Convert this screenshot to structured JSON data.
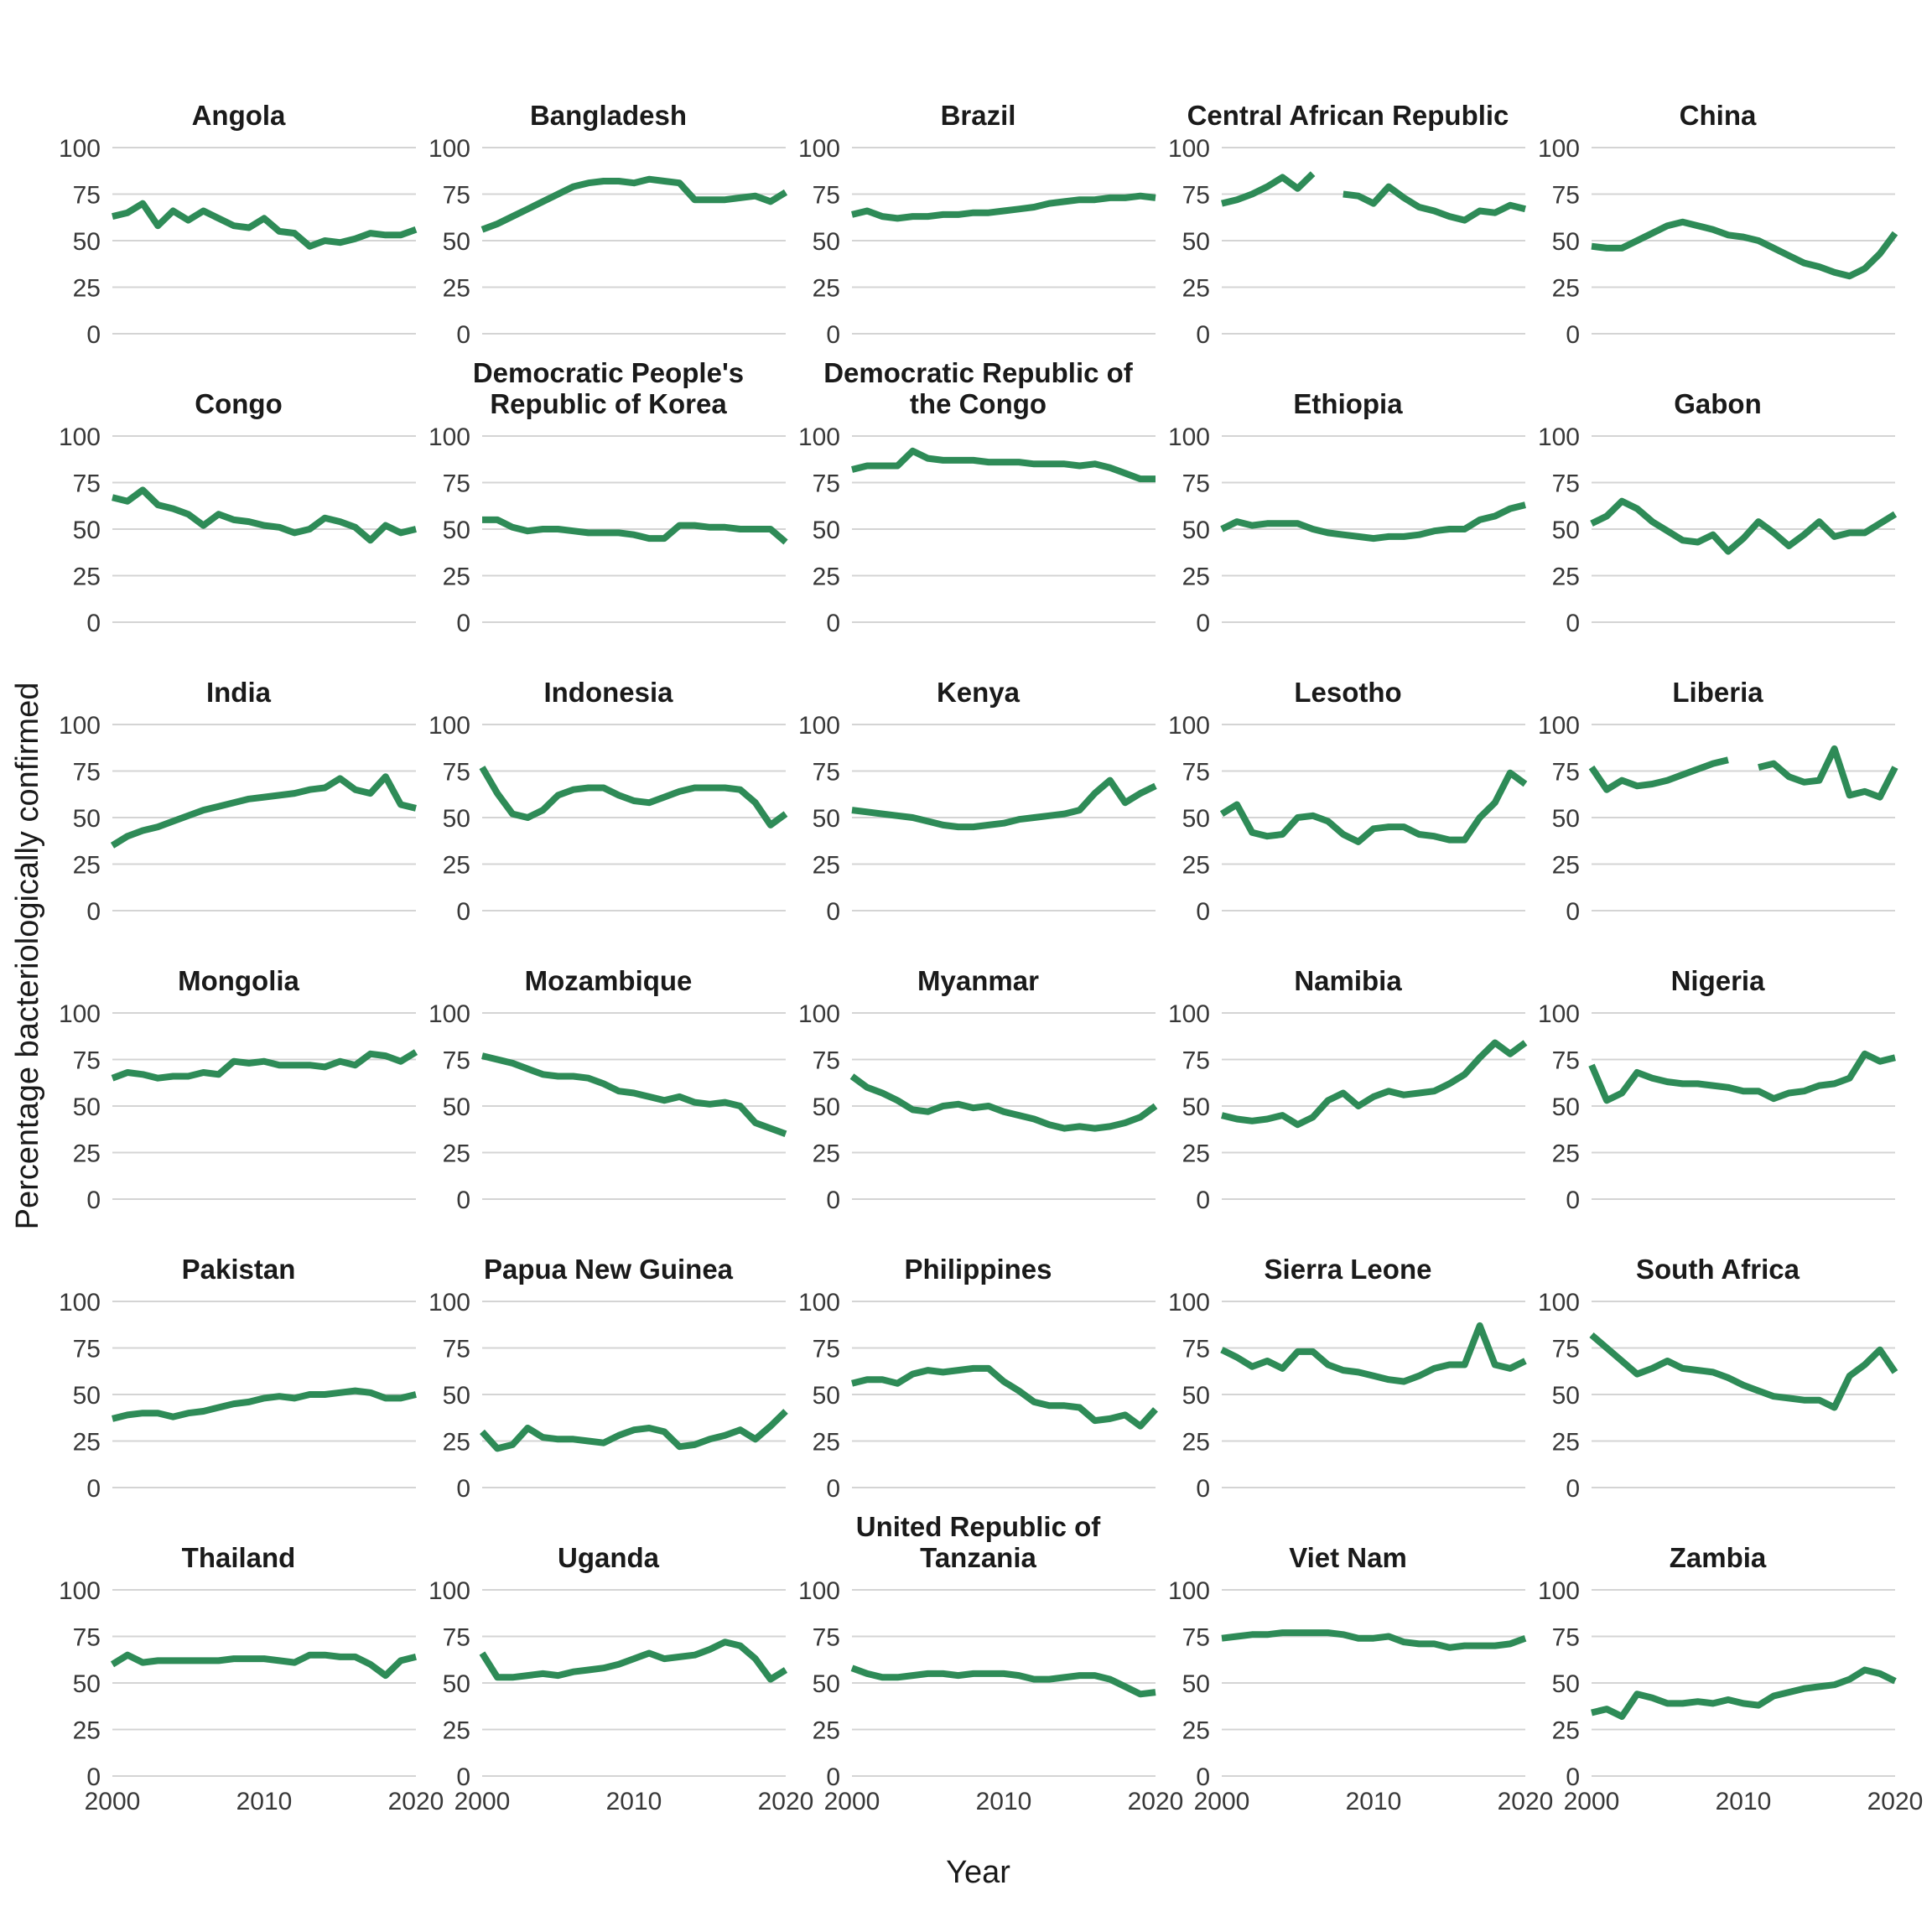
{
  "figure": {
    "y_axis_title": "Percentage bacteriologically confirmed",
    "x_axis_title": "Year",
    "colors": {
      "line": "#2e8b57",
      "grid": "#d4d4d4",
      "title_text": "#1a1a1a",
      "tick_text": "#383838"
    }
  },
  "chart_data": {
    "type": "line",
    "x": [
      2000,
      2001,
      2002,
      2003,
      2004,
      2005,
      2006,
      2007,
      2008,
      2009,
      2010,
      2011,
      2012,
      2013,
      2014,
      2015,
      2016,
      2017,
      2018,
      2019,
      2020
    ],
    "x_ticks": [
      2000,
      2010,
      2020
    ],
    "y_ticks": [
      100,
      75,
      50,
      25,
      0
    ],
    "ylim": [
      0,
      100
    ],
    "grid": "horizontal-only",
    "facets_per_row": 5,
    "legend": "none",
    "series": [
      {
        "name": "Angola",
        "values": [
          63,
          65,
          70,
          58,
          66,
          61,
          66,
          62,
          58,
          57,
          62,
          55,
          54,
          47,
          50,
          49,
          51,
          54,
          53,
          53,
          56
        ]
      },
      {
        "name": "Bangladesh",
        "values": [
          56,
          59,
          63,
          67,
          71,
          75,
          79,
          81,
          82,
          82,
          81,
          83,
          82,
          81,
          72,
          72,
          72,
          73,
          74,
          71,
          76
        ]
      },
      {
        "name": "Brazil",
        "values": [
          64,
          66,
          63,
          62,
          63,
          63,
          64,
          64,
          65,
          65,
          66,
          67,
          68,
          70,
          71,
          72,
          72,
          73,
          73,
          74,
          73
        ]
      },
      {
        "name": "Central African\nRepublic",
        "values": [
          70,
          72,
          75,
          79,
          84,
          78,
          86,
          null,
          75,
          74,
          70,
          79,
          73,
          68,
          66,
          63,
          61,
          66,
          65,
          69,
          67
        ]
      },
      {
        "name": "China",
        "values": [
          47,
          46,
          46,
          50,
          54,
          58,
          60,
          58,
          56,
          53,
          52,
          50,
          46,
          42,
          38,
          36,
          33,
          31,
          35,
          43,
          54
        ]
      },
      {
        "name": "Congo",
        "values": [
          67,
          65,
          71,
          63,
          61,
          58,
          52,
          58,
          55,
          54,
          52,
          51,
          48,
          50,
          56,
          54,
          51,
          44,
          52,
          48,
          50
        ]
      },
      {
        "name": "Democratic People's\nRepublic of Korea",
        "values": [
          55,
          55,
          51,
          49,
          50,
          50,
          49,
          48,
          48,
          48,
          47,
          45,
          45,
          52,
          52,
          51,
          51,
          50,
          50,
          50,
          43
        ]
      },
      {
        "name": "Democratic Republic\nof the Congo",
        "values": [
          82,
          84,
          84,
          84,
          92,
          88,
          87,
          87,
          87,
          86,
          86,
          86,
          85,
          85,
          85,
          84,
          85,
          83,
          80,
          77,
          77
        ]
      },
      {
        "name": "Ethiopia",
        "values": [
          50,
          54,
          52,
          53,
          53,
          53,
          50,
          48,
          47,
          46,
          45,
          46,
          46,
          47,
          49,
          50,
          50,
          55,
          57,
          61,
          63
        ]
      },
      {
        "name": "Gabon",
        "values": [
          53,
          57,
          65,
          61,
          54,
          49,
          44,
          43,
          47,
          38,
          45,
          54,
          48,
          41,
          47,
          54,
          46,
          48,
          48,
          53,
          58
        ]
      },
      {
        "name": "India",
        "values": [
          35,
          40,
          43,
          45,
          48,
          51,
          54,
          56,
          58,
          60,
          61,
          62,
          63,
          65,
          66,
          71,
          65,
          63,
          72,
          57,
          55
        ]
      },
      {
        "name": "Indonesia",
        "values": [
          77,
          63,
          52,
          50,
          54,
          62,
          65,
          66,
          66,
          62,
          59,
          58,
          61,
          64,
          66,
          66,
          66,
          65,
          58,
          46,
          52
        ]
      },
      {
        "name": "Kenya",
        "values": [
          54,
          53,
          52,
          51,
          50,
          48,
          46,
          45,
          45,
          46,
          47,
          49,
          50,
          51,
          52,
          54,
          63,
          70,
          58,
          63,
          67
        ]
      },
      {
        "name": "Lesotho",
        "values": [
          52,
          57,
          42,
          40,
          41,
          50,
          51,
          48,
          41,
          37,
          44,
          45,
          45,
          41,
          40,
          38,
          38,
          50,
          58,
          74,
          68
        ]
      },
      {
        "name": "Liberia",
        "values": [
          77,
          65,
          70,
          67,
          68,
          70,
          73,
          76,
          79,
          81,
          null,
          77,
          79,
          72,
          69,
          70,
          87,
          62,
          64,
          61,
          77
        ]
      },
      {
        "name": "Mongolia",
        "values": [
          65,
          68,
          67,
          65,
          66,
          66,
          68,
          67,
          74,
          73,
          74,
          72,
          72,
          72,
          71,
          74,
          72,
          78,
          77,
          74,
          79
        ]
      },
      {
        "name": "Mozambique",
        "values": [
          77,
          75,
          73,
          70,
          67,
          66,
          66,
          65,
          62,
          58,
          57,
          55,
          53,
          55,
          52,
          51,
          52,
          50,
          41,
          38,
          35
        ]
      },
      {
        "name": "Myanmar",
        "values": [
          66,
          60,
          57,
          53,
          48,
          47,
          50,
          51,
          49,
          50,
          47,
          45,
          43,
          40,
          38,
          39,
          38,
          39,
          41,
          44,
          50
        ]
      },
      {
        "name": "Namibia",
        "values": [
          45,
          43,
          42,
          43,
          45,
          40,
          44,
          53,
          57,
          50,
          55,
          58,
          56,
          57,
          58,
          62,
          67,
          76,
          84,
          78,
          84
        ]
      },
      {
        "name": "Nigeria",
        "values": [
          72,
          53,
          57,
          68,
          65,
          63,
          62,
          62,
          61,
          60,
          58,
          58,
          54,
          57,
          58,
          61,
          62,
          65,
          78,
          74,
          76
        ]
      },
      {
        "name": "Pakistan",
        "values": [
          37,
          39,
          40,
          40,
          38,
          40,
          41,
          43,
          45,
          46,
          48,
          49,
          48,
          50,
          50,
          51,
          52,
          51,
          48,
          48,
          50
        ]
      },
      {
        "name": "Papua New Guinea",
        "values": [
          30,
          21,
          23,
          32,
          27,
          26,
          26,
          25,
          24,
          28,
          31,
          32,
          30,
          22,
          23,
          26,
          28,
          31,
          26,
          33,
          41
        ]
      },
      {
        "name": "Philippines",
        "values": [
          56,
          58,
          58,
          56,
          61,
          63,
          62,
          63,
          64,
          64,
          57,
          52,
          46,
          44,
          44,
          43,
          36,
          37,
          39,
          33,
          42
        ]
      },
      {
        "name": "Sierra Leone",
        "values": [
          74,
          70,
          65,
          68,
          64,
          73,
          73,
          66,
          63,
          62,
          60,
          58,
          57,
          60,
          64,
          66,
          66,
          87,
          66,
          64,
          68
        ]
      },
      {
        "name": "South Africa",
        "values": [
          82,
          75,
          68,
          61,
          64,
          68,
          64,
          63,
          62,
          59,
          55,
          52,
          49,
          48,
          47,
          47,
          43,
          60,
          66,
          74,
          62
        ]
      },
      {
        "name": "Thailand",
        "values": [
          60,
          65,
          61,
          62,
          62,
          62,
          62,
          62,
          63,
          63,
          63,
          62,
          61,
          65,
          65,
          64,
          64,
          60,
          54,
          62,
          64
        ]
      },
      {
        "name": "Uganda",
        "values": [
          66,
          53,
          53,
          54,
          55,
          54,
          56,
          57,
          58,
          60,
          63,
          66,
          63,
          64,
          65,
          68,
          72,
          70,
          63,
          52,
          57
        ]
      },
      {
        "name": "United Republic of\nTanzania",
        "values": [
          58,
          55,
          53,
          53,
          54,
          55,
          55,
          54,
          55,
          55,
          55,
          54,
          52,
          52,
          53,
          54,
          54,
          52,
          48,
          44,
          45
        ]
      },
      {
        "name": "Viet Nam",
        "values": [
          74,
          75,
          76,
          76,
          77,
          77,
          77,
          77,
          76,
          74,
          74,
          75,
          72,
          71,
          71,
          69,
          70,
          70,
          70,
          71,
          74
        ]
      },
      {
        "name": "Zambia",
        "values": [
          34,
          36,
          32,
          44,
          42,
          39,
          39,
          40,
          39,
          41,
          39,
          38,
          43,
          45,
          47,
          48,
          49,
          52,
          57,
          55,
          51
        ]
      }
    ]
  }
}
